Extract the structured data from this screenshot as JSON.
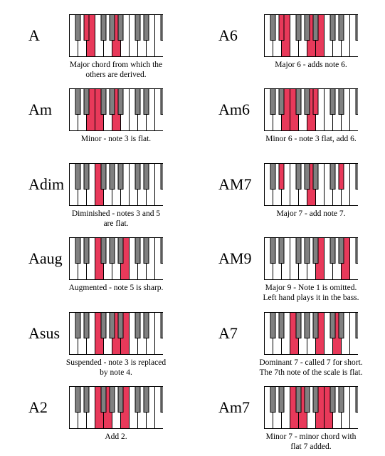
{
  "colors": {
    "highlight": "#e8395a",
    "black_key": "#808080",
    "white_key": "#ffffff",
    "outline": "#000000"
  },
  "chords": [
    {
      "id": "A",
      "name": "A",
      "column": "left",
      "row": 0,
      "white": [
        2,
        5
      ],
      "black": [
        1
      ],
      "caption": [
        "Major chord from which the",
        "others are derived."
      ]
    },
    {
      "id": "A6",
      "name": "A6",
      "column": "right",
      "row": 0,
      "white": [
        2,
        5,
        6
      ],
      "black": [
        1
      ],
      "caption": [
        "Major 6 - adds note 6."
      ]
    },
    {
      "id": "Am",
      "name": "Am",
      "column": "left",
      "row": 1,
      "white": [
        2,
        3,
        5
      ],
      "black": [],
      "caption": [
        "Minor - note 3 is flat."
      ]
    },
    {
      "id": "Am6",
      "name": "Am6",
      "column": "right",
      "row": 1,
      "white": [
        2,
        3,
        5
      ],
      "black": [
        4
      ],
      "caption": [
        "Minor 6 - note 3 flat, add 6."
      ]
    },
    {
      "id": "Adim",
      "name": "Adim",
      "column": "left",
      "row": 2,
      "white": [
        3
      ],
      "black": [],
      "caption": [
        "Diminished - notes 3 and 5",
        "are flat."
      ]
    },
    {
      "id": "AM7",
      "name": "AM7",
      "column": "right",
      "row": 2,
      "white": [
        5
      ],
      "black": [
        1,
        6
      ],
      "caption": [
        "Major 7 - add note 7."
      ]
    },
    {
      "id": "Aaug",
      "name": "Aaug",
      "column": "left",
      "row": 3,
      "white": [
        3,
        6
      ],
      "black": [],
      "caption": [
        "Augmented - note 5 is sharp."
      ]
    },
    {
      "id": "AM9",
      "name": "AM9",
      "column": "right",
      "row": 3,
      "white": [
        6,
        9
      ],
      "black": [
        8
      ],
      "caption": [
        "Major 9 - Note 1 is omitted.",
        "Left hand plays it in the bass."
      ]
    },
    {
      "id": "Asus",
      "name": "Asus",
      "column": "left",
      "row": 4,
      "white": [
        3,
        5,
        6
      ],
      "black": [],
      "caption": [
        "Suspended - note 3 is replaced",
        "by note 4."
      ]
    },
    {
      "id": "A7",
      "name": "A7",
      "column": "right",
      "row": 4,
      "white": [
        3,
        6,
        8
      ],
      "black": [],
      "caption": [
        "Dominant 7 - called 7 for short.",
        "The 7th note of the scale is flat."
      ]
    },
    {
      "id": "A2",
      "name": "A2",
      "column": "left",
      "row": 5,
      "white": [
        3,
        4,
        6
      ],
      "black": [],
      "caption": [
        "Add 2."
      ]
    },
    {
      "id": "Am7",
      "name": "Am7",
      "column": "right",
      "row": 5,
      "white": [
        3,
        4,
        6,
        7
      ],
      "black": [],
      "caption": [
        "Minor 7 - minor chord with",
        "flat 7 added."
      ]
    }
  ]
}
